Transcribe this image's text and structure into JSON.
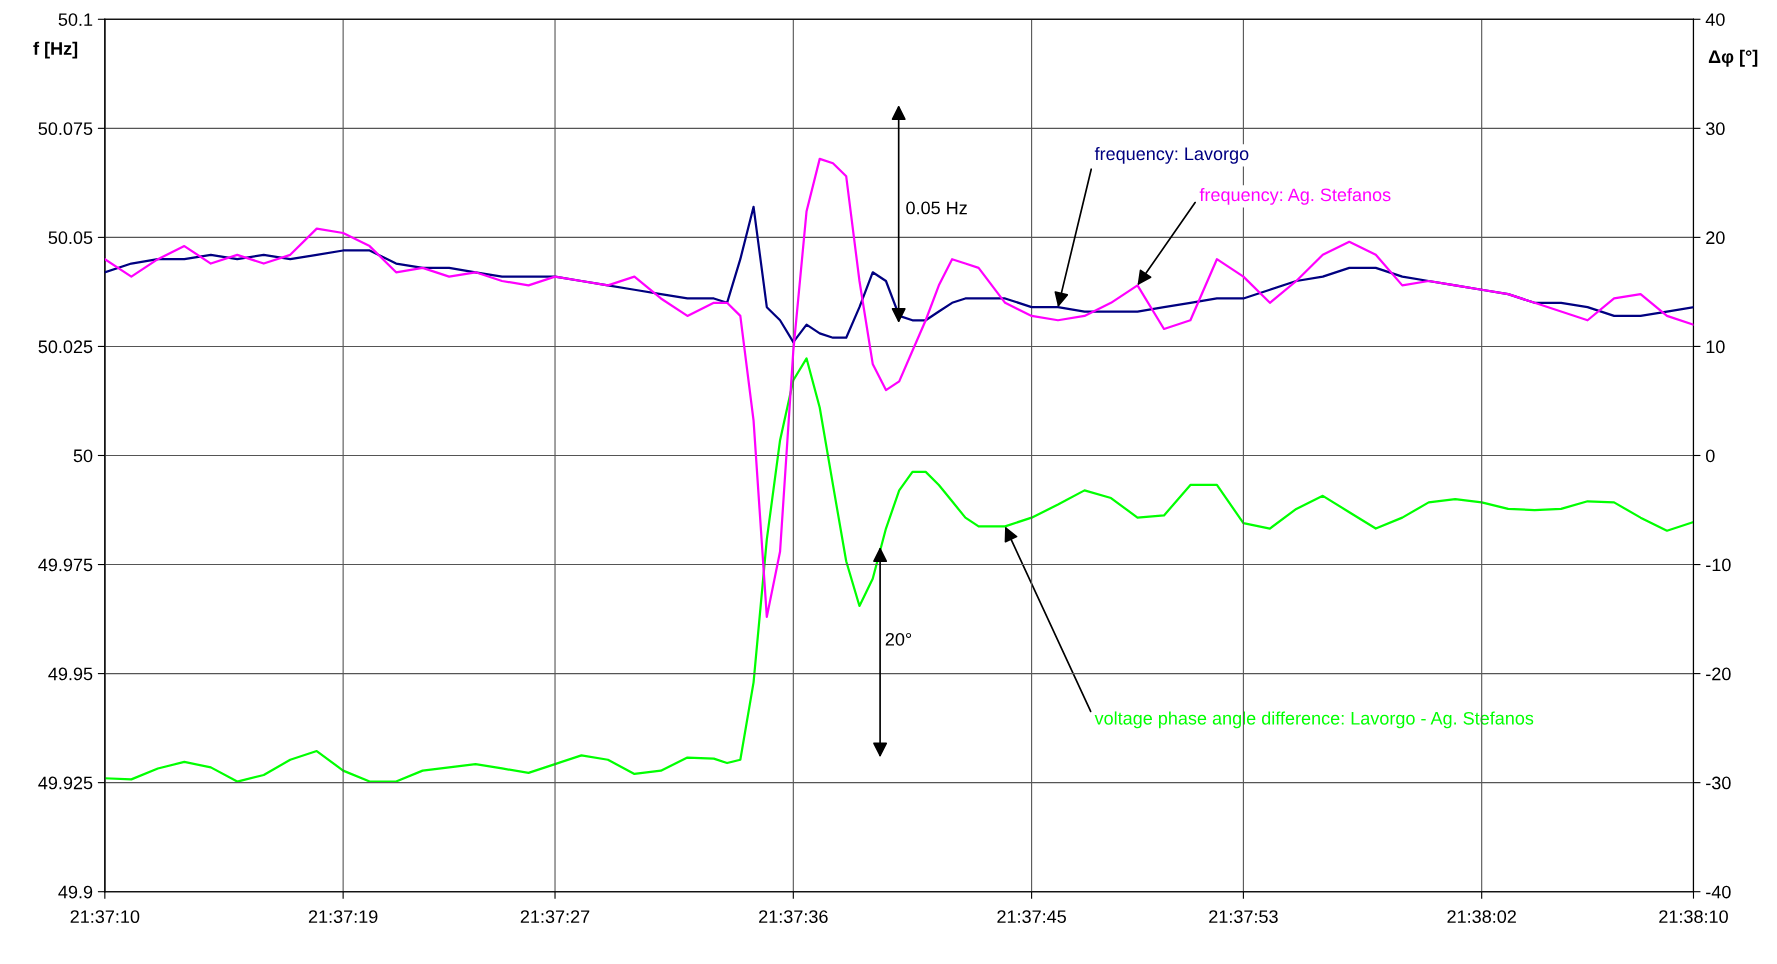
{
  "chart_data": {
    "type": "line",
    "x": [
      21.619444,
      21.619722,
      21.62,
      21.620278,
      21.620556,
      21.620833,
      21.621111,
      21.621389,
      21.621667,
      21.621944,
      21.622222,
      21.6225,
      21.622778,
      21.623056,
      21.623333,
      21.623611,
      21.623889,
      21.624167,
      21.624444,
      21.624722,
      21.625,
      21.625278,
      21.625556,
      21.625833,
      21.625972,
      21.626111,
      21.62625,
      21.626389,
      21.626528,
      21.626667,
      21.626806,
      21.626944,
      21.627083,
      21.627222,
      21.627361,
      21.6275,
      21.627639,
      21.627778,
      21.627917,
      21.628056,
      21.628194,
      21.628333,
      21.628472,
      21.628611,
      21.628889,
      21.629167,
      21.629444,
      21.629722,
      21.63,
      21.630278,
      21.630556,
      21.630833,
      21.631111,
      21.631389,
      21.631667,
      21.631944,
      21.632222,
      21.6325,
      21.632778,
      21.633056,
      21.633333,
      21.633611,
      21.633889,
      21.634167,
      21.634444,
      21.634722,
      21.635,
      21.635278,
      21.635556,
      21.635833,
      21.636111
    ],
    "series": [
      {
        "name": "frequency: Lavorgo",
        "color": "#000080",
        "values": [
          50.042,
          50.044,
          50.045,
          50.045,
          50.046,
          50.045,
          50.046,
          50.045,
          50.046,
          50.047,
          50.047,
          50.044,
          50.043,
          50.043,
          50.042,
          50.041,
          50.041,
          50.041,
          50.04,
          50.039,
          50.038,
          50.037,
          50.036,
          50.036,
          50.035,
          50.045,
          50.057,
          50.034,
          50.031,
          50.026,
          50.03,
          50.028,
          50.027,
          50.027,
          50.034,
          50.042,
          50.04,
          50.032,
          50.031,
          50.031,
          50.033,
          50.035,
          50.036,
          50.036,
          50.036,
          50.034,
          50.034,
          50.033,
          50.033,
          50.033,
          50.034,
          50.035,
          50.036,
          50.036,
          50.038,
          50.04,
          50.041,
          50.043,
          50.043,
          50.041,
          50.04,
          50.039,
          50.038,
          50.037,
          50.035,
          50.035,
          50.034,
          50.032,
          50.032,
          50.033,
          50.034
        ]
      },
      {
        "name": "frequency: Ag. Stefanos",
        "color": "#ff00ff",
        "values": [
          50.045,
          50.041,
          50.045,
          50.048,
          50.044,
          50.046,
          50.044,
          50.046,
          50.052,
          50.051,
          50.048,
          50.042,
          50.043,
          50.041,
          50.042,
          50.04,
          50.039,
          50.041,
          50.04,
          50.039,
          50.041,
          50.036,
          50.032,
          50.035,
          50.035,
          50.032,
          50.008,
          49.963,
          49.978,
          50.024,
          50.056,
          50.068,
          50.067,
          50.064,
          50.04,
          50.021,
          50.015,
          50.017,
          50.024,
          50.031,
          50.039,
          50.045,
          50.044,
          50.043,
          50.035,
          50.032,
          50.031,
          50.032,
          50.035,
          50.039,
          50.029,
          50.031,
          50.045,
          50.041,
          50.035,
          50.04,
          50.046,
          50.049,
          50.046,
          50.039,
          50.04,
          50.039,
          50.038,
          50.037,
          50.035,
          50.033,
          50.031,
          50.036,
          50.037,
          50.032,
          50.03
        ]
      },
      {
        "name": "voltage phase angle difference: Lavorgo - Ag. Stefanos",
        "color": "#00ff00",
        "axis": "y2",
        "values": [
          -29.6,
          -29.7,
          -28.7,
          -28.1,
          -28.6,
          -29.9,
          -29.3,
          -27.9,
          -27.1,
          -28.9,
          -29.9,
          -29.9,
          -28.9,
          -28.6,
          -28.3,
          -28.7,
          -29.1,
          -28.3,
          -27.5,
          -27.9,
          -29.2,
          -28.9,
          -27.7,
          -27.8,
          -28.2,
          -27.9,
          -20.8,
          -7.7,
          1.4,
          6.9,
          8.9,
          4.4,
          -2.7,
          -9.7,
          -13.8,
          -11.3,
          -6.7,
          -3.2,
          -1.5,
          -1.5,
          -2.7,
          -4.2,
          -5.7,
          -6.5,
          -6.5,
          -5.7,
          -4.5,
          -3.2,
          -3.9,
          -5.7,
          -5.5,
          -2.7,
          -2.7,
          -6.2,
          -6.7,
          -4.9,
          -3.7,
          -5.2,
          -6.7,
          -5.7,
          -4.3,
          -4.0,
          -4.3,
          -4.9,
          -5.0,
          -4.9,
          -4.2,
          -4.3,
          -5.7,
          -6.9,
          -6.1
        ]
      }
    ],
    "xlim": [
      21.619444,
      21.636111
    ],
    "xticks": [
      {
        "value": 21.619444,
        "label": "21:37:10"
      },
      {
        "value": 21.621944,
        "label": "21:37:19"
      },
      {
        "value": 21.624167,
        "label": "21:37:27"
      },
      {
        "value": 21.626667,
        "label": "21:37:36"
      },
      {
        "value": 21.629167,
        "label": "21:37:45"
      },
      {
        "value": 21.631389,
        "label": "21:37:53"
      },
      {
        "value": 21.633889,
        "label": "21:38:02"
      },
      {
        "value": 21.636111,
        "label": "21:38:10"
      }
    ],
    "ylim": [
      49.9,
      50.1
    ],
    "yticks": [
      49.9,
      49.925,
      49.95,
      49.975,
      50,
      50.025,
      50.05,
      50.075,
      50.1
    ],
    "y2lim": [
      -40,
      40
    ],
    "y2ticks": [
      -40,
      -30,
      -20,
      -10,
      0,
      10,
      20,
      30,
      40
    ],
    "ylabel": "f [Hz]",
    "y2label": "Δφ [°]",
    "annotations": [
      "0.05 Hz",
      "20°"
    ],
    "grid": true,
    "line_style": "solid",
    "marker": "none"
  }
}
